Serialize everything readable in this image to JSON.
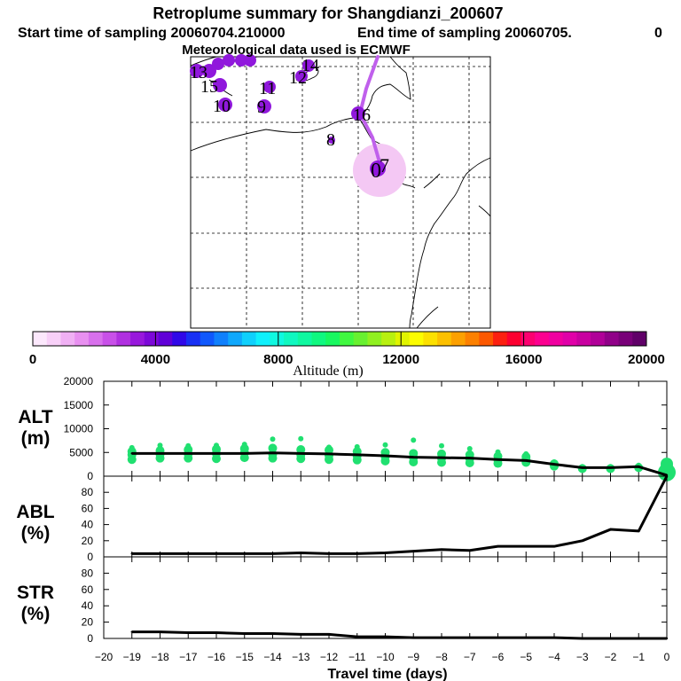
{
  "header": {
    "title": "Retroplume summary for Shangdianzi_200607",
    "start_label": "Start time of sampling 20060704.210000",
    "end_label": "End time of sampling 20060705.",
    "end_suffix": "0",
    "met_label": "Meteorological data used is ECMWF"
  },
  "colorbar": {
    "label": "Altitude (m)",
    "tick_labels": [
      "0",
      "4000",
      "8000",
      "12000",
      "16000",
      "20000"
    ],
    "min": 0,
    "max": 20000,
    "colors": [
      "#fce8fc",
      "#f8d0f8",
      "#f0b0f4",
      "#e890f0",
      "#d870ec",
      "#c850e8",
      "#b030e0",
      "#9818dc",
      "#7c08d8",
      "#6000d8",
      "#3008e8",
      "#1830f4",
      "#1058fc",
      "#1080fc",
      "#10a8fc",
      "#10d0fc",
      "#10f0fc",
      "#10f8e0",
      "#10f8c0",
      "#10f8a0",
      "#10f880",
      "#18f860",
      "#40f840",
      "#68f030",
      "#90f020",
      "#b8f010",
      "#e0f400",
      "#fcfc00",
      "#fce000",
      "#fcc000",
      "#fca000",
      "#fc8000",
      "#fc5800",
      "#fc2010",
      "#fc0030",
      "#fc0070",
      "#fc0090",
      "#f000a0",
      "#e000a8",
      "#c800a0",
      "#b00098",
      "#900088",
      "#780078",
      "#600068"
    ]
  },
  "map": {
    "labels": [
      "13",
      "15",
      "11",
      "10",
      "9",
      "12",
      "14",
      "16",
      "8",
      "0",
      "7"
    ],
    "plume_color": "#c060ec",
    "cluster_color": "#9018dc",
    "source_color": "#f4c8f4"
  },
  "chart_data": [
    {
      "type": "line",
      "panel": "ALT",
      "ylabel_line1": "ALT",
      "ylabel_line2": "(m)",
      "ylim": [
        0,
        20000
      ],
      "yticks": [
        0,
        5000,
        10000,
        15000,
        20000
      ],
      "ytick_labels": [
        "0",
        "5000",
        "10000",
        "15000",
        "20000"
      ],
      "x": [
        -19,
        -18,
        -17,
        -16,
        -15,
        -14,
        -13,
        -12,
        -11,
        -10,
        -9,
        -8,
        -7,
        -6,
        -5,
        -4,
        -3,
        -2,
        -1,
        0
      ],
      "values": [
        4800,
        4800,
        4800,
        4800,
        4800,
        4900,
        4800,
        4700,
        4500,
        4300,
        4000,
        3900,
        3800,
        3500,
        3300,
        2500,
        1800,
        1800,
        2000,
        200
      ],
      "line_color": "#000000",
      "scatter_color": "#20e070",
      "scatter": [
        {
          "x": -19,
          "y": [
            3500,
            4500,
            5200,
            6000
          ]
        },
        {
          "x": -18,
          "y": [
            3800,
            4600,
            5400,
            6500
          ]
        },
        {
          "x": -17,
          "y": [
            3800,
            4700,
            5600,
            6400
          ]
        },
        {
          "x": -16,
          "y": [
            3700,
            4800,
            5700,
            6500
          ]
        },
        {
          "x": -15,
          "y": [
            3900,
            4900,
            5800,
            6700
          ]
        },
        {
          "x": -14,
          "y": [
            3800,
            4600,
            5900,
            7800
          ]
        },
        {
          "x": -13,
          "y": [
            3700,
            4500,
            5600,
            7900
          ]
        },
        {
          "x": -12,
          "y": [
            3500,
            4400,
            5500,
            6100
          ]
        },
        {
          "x": -11,
          "y": [
            3400,
            4300,
            5200,
            6200
          ]
        },
        {
          "x": -10,
          "y": [
            3200,
            4100,
            5000,
            6600
          ]
        },
        {
          "x": -9,
          "y": [
            3000,
            3900,
            4800,
            7600
          ]
        },
        {
          "x": -8,
          "y": [
            2900,
            3800,
            4700,
            6400
          ]
        },
        {
          "x": -7,
          "y": [
            2800,
            3700,
            4500,
            5800
          ]
        },
        {
          "x": -6,
          "y": [
            2700,
            3400,
            4200,
            5100
          ]
        },
        {
          "x": -5,
          "y": [
            2900,
            3500,
            4100,
            4700
          ]
        },
        {
          "x": -4,
          "y": [
            2100,
            2600,
            3000
          ]
        },
        {
          "x": -3,
          "y": [
            1600,
            2000
          ]
        },
        {
          "x": -2,
          "y": [
            1600,
            2000
          ]
        },
        {
          "x": -1,
          "y": [
            1800,
            2300
          ]
        },
        {
          "x": 0,
          "y": [
            800,
            1400,
            2000,
            2600
          ]
        }
      ]
    },
    {
      "type": "line",
      "panel": "ABL",
      "ylabel_line1": "ABL",
      "ylabel_line2": "(%)",
      "ylim": [
        0,
        100
      ],
      "yticks": [
        0,
        20,
        40,
        60,
        80
      ],
      "ytick_labels": [
        "0",
        "20",
        "40",
        "60",
        "80"
      ],
      "x": [
        -19,
        -18,
        -17,
        -16,
        -15,
        -14,
        -13,
        -12,
        -11,
        -10,
        -9,
        -8,
        -7,
        -6,
        -5,
        -4,
        -3,
        -2,
        -1,
        0
      ],
      "values": [
        4,
        4,
        4,
        4,
        4,
        4,
        5,
        4,
        4,
        5,
        7,
        9,
        8,
        13,
        13,
        13,
        20,
        34,
        32,
        100
      ]
    },
    {
      "type": "line",
      "panel": "STR",
      "ylabel_line1": "STR",
      "ylabel_line2": "(%)",
      "ylim": [
        0,
        100
      ],
      "yticks": [
        0,
        20,
        40,
        60,
        80
      ],
      "ytick_labels": [
        "0",
        "20",
        "40",
        "60",
        "80"
      ],
      "x": [
        -19,
        -18,
        -17,
        -16,
        -15,
        -14,
        -13,
        -12,
        -11,
        -10,
        -9,
        -8,
        -7,
        -6,
        -5,
        -4,
        -3,
        -2,
        -1,
        0
      ],
      "values": [
        8,
        8,
        7,
        7,
        6,
        6,
        5,
        5,
        2,
        2,
        1,
        1,
        1,
        1,
        1,
        1,
        0,
        0,
        0,
        0
      ]
    }
  ],
  "xaxis": {
    "label": "Travel time (days)",
    "ticks": [
      -20,
      -19,
      -18,
      -17,
      -16,
      -15,
      -14,
      -13,
      -12,
      -11,
      -10,
      -9,
      -8,
      -7,
      -6,
      -5,
      -4,
      -3,
      -2,
      -1,
      0
    ],
    "tick_labels": [
      "−20",
      "−19",
      "−18",
      "−17",
      "−16",
      "−15",
      "−14",
      "−13",
      "−12",
      "−11",
      "−10",
      "−9",
      "−8",
      "−7",
      "−6",
      "−5",
      "−4",
      "−3",
      "−2",
      "−1",
      "0"
    ]
  }
}
